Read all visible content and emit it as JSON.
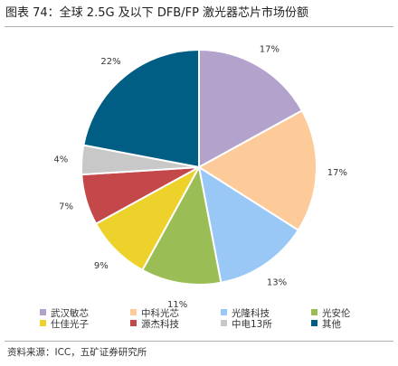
{
  "title": "图表 74：全球 2.5G 及以下 DFB/FP 激光器芯片市场份额",
  "source": "资料来源：ICC，五矿证券研究所",
  "chart_data": {
    "type": "pie",
    "title": "",
    "series": [
      {
        "name": "武汉敏芯",
        "value": 17,
        "label": "17%",
        "color": "#b3a2cc"
      },
      {
        "name": "中科光芯",
        "value": 17,
        "label": "17%",
        "color": "#fdcb99"
      },
      {
        "name": "光隆科技",
        "value": 13,
        "label": "13%",
        "color": "#99c8f6"
      },
      {
        "name": "光安伦",
        "value": 11,
        "label": "11%",
        "color": "#9abd55"
      },
      {
        "name": "仕佳光子",
        "value": 9,
        "label": "9%",
        "color": "#ecd22a"
      },
      {
        "name": "源杰科技",
        "value": 7,
        "label": "7%",
        "color": "#c4474a"
      },
      {
        "name": "中电13所",
        "value": 4,
        "label": "4%",
        "color": "#c8c8c8"
      },
      {
        "name": "其他",
        "value": 22,
        "label": "22%",
        "color": "#005e84"
      }
    ],
    "start": "12 o'clock",
    "direction": "clockwise",
    "legend": "bottom"
  }
}
